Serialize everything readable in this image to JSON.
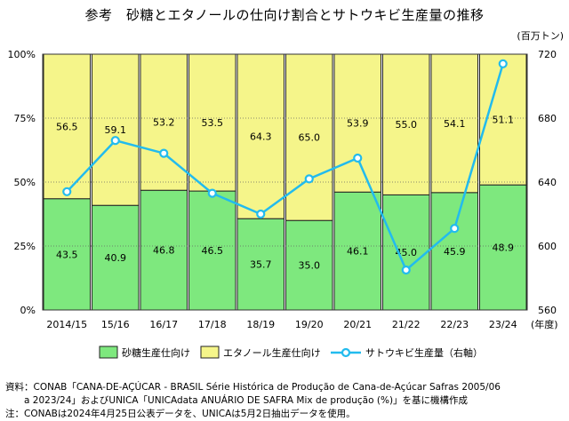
{
  "title": "参考　砂糖とエタノールの仕向け割合とサトウキビ生産量の推移",
  "chart_data": {
    "type": "bar",
    "stacked_percent": true,
    "categories": [
      "2014/15",
      "15/16",
      "16/17",
      "17/18",
      "18/19",
      "19/20",
      "20/21",
      "21/22",
      "22/23",
      "23/24"
    ],
    "x_unit": "(年度)",
    "series": [
      {
        "name": "砂糖生産仕向け",
        "type": "bar",
        "color": "#7EE87E",
        "values": [
          43.5,
          40.9,
          46.8,
          46.5,
          35.7,
          35.0,
          46.1,
          45.0,
          45.9,
          48.9
        ]
      },
      {
        "name": "エタノール生産仕向け",
        "type": "bar",
        "color": "#F5F58A",
        "values": [
          56.5,
          59.1,
          53.2,
          53.5,
          64.3,
          65.0,
          53.9,
          55.0,
          54.1,
          51.1
        ]
      },
      {
        "name": "サトウキビ生産量（右軸）",
        "type": "line",
        "axis": "right",
        "color": "#22BBEE",
        "values": [
          634,
          666,
          658,
          633,
          620,
          642,
          655,
          585,
          611,
          714
        ]
      }
    ],
    "y_left": {
      "ticks": [
        "0%",
        "25%",
        "50%",
        "75%",
        "100%"
      ],
      "ylim": [
        0,
        100
      ]
    },
    "y_right": {
      "unit": "(百万トン)",
      "ticks": [
        "560",
        "600",
        "640",
        "680",
        "720"
      ],
      "ylim": [
        560,
        720
      ]
    },
    "grid": true,
    "legend_position": "bottom"
  },
  "source_lines": [
    "資料：CONAB「CANA-DE-AÇÚCAR - BRASIL Série Histórica de Produção de Cana-de-Açúcar Safras 2005/06",
    "　　a 2023/24」およびUNICA「UNICAdata ANUÁRIO DE SAFRA Mix de produção (%)」を基に機構作成",
    "注：CONABは2024年4月25日公表データを、UNICAは5月2日抽出データを使用。"
  ]
}
